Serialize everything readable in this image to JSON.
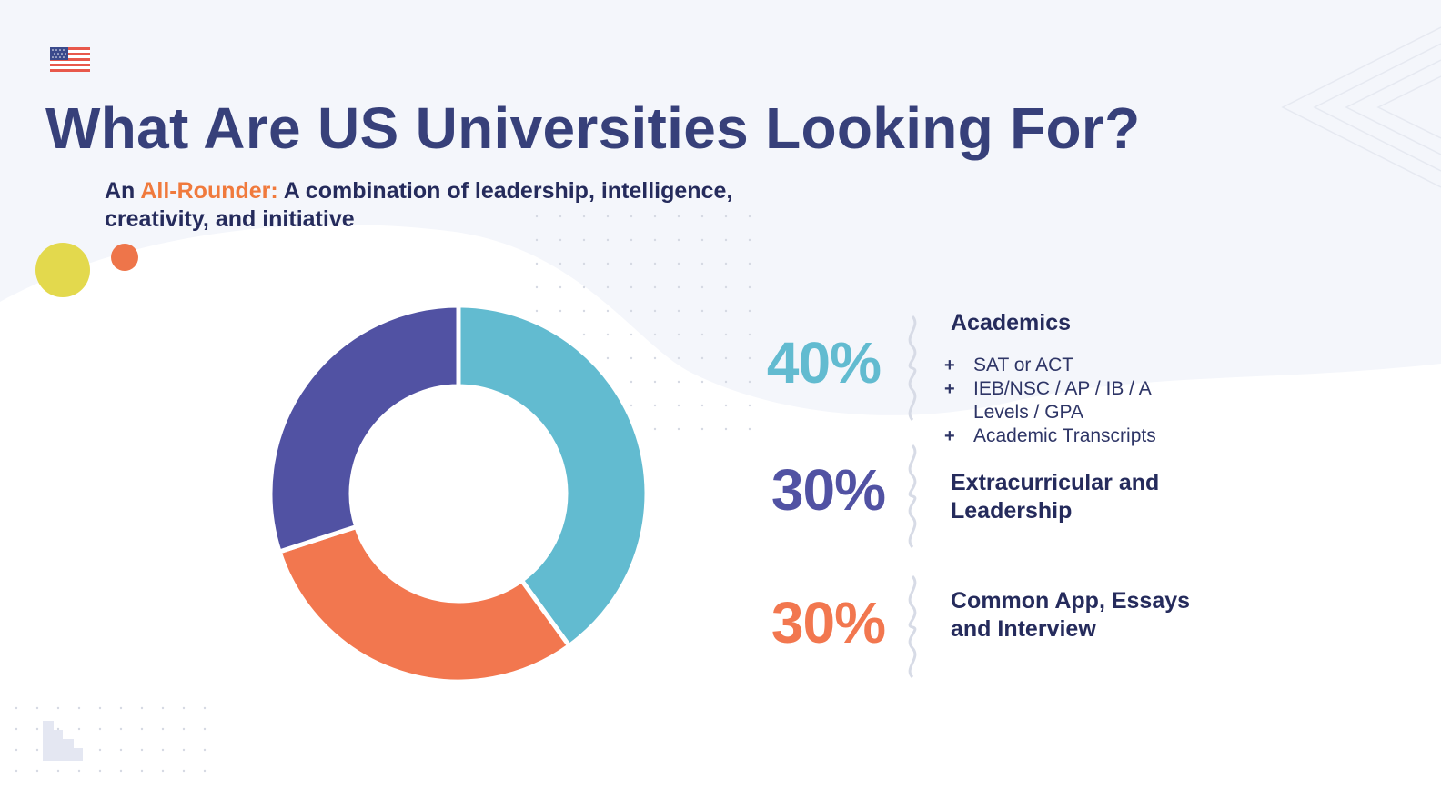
{
  "title": "What Are US Universities Looking For?",
  "subtitle": {
    "prefix": "An ",
    "highlight": "All-Rounder:",
    "rest": " A combination of leadership, intelligence, creativity, and initiative"
  },
  "colors": {
    "title": "#37407a",
    "highlight": "#f07a3d",
    "academics": "#62bbd0",
    "extracurricular": "#5152a3",
    "common_app": "#f2774f",
    "accent_yellow": "#e3d94d",
    "accent_orange": "#ee754a"
  },
  "icons": {
    "flag": "us-flag-icon",
    "bullet": "plus-icon"
  },
  "chart_data": {
    "type": "pie",
    "donut": true,
    "title": "",
    "categories": [
      "Academics",
      "Extracurricular and Leadership",
      "Common App, Essays and Interview"
    ],
    "values": [
      40,
      30,
      30
    ],
    "value_labels": [
      "40%",
      "30%",
      "30%"
    ],
    "colors": [
      "#62bbd0",
      "#f2774f",
      "#5152a3"
    ],
    "legend": "right"
  },
  "breakdown": [
    {
      "percent": "40%",
      "label": "Academics",
      "details": [
        "SAT or ACT",
        "IEB/NSC / AP / IB / A Levels / GPA",
        "Academic Transcripts"
      ]
    },
    {
      "percent": "30%",
      "label": "Extracurricular and Leadership"
    },
    {
      "percent": "30%",
      "label": "Common App, Essays and Interview"
    }
  ]
}
